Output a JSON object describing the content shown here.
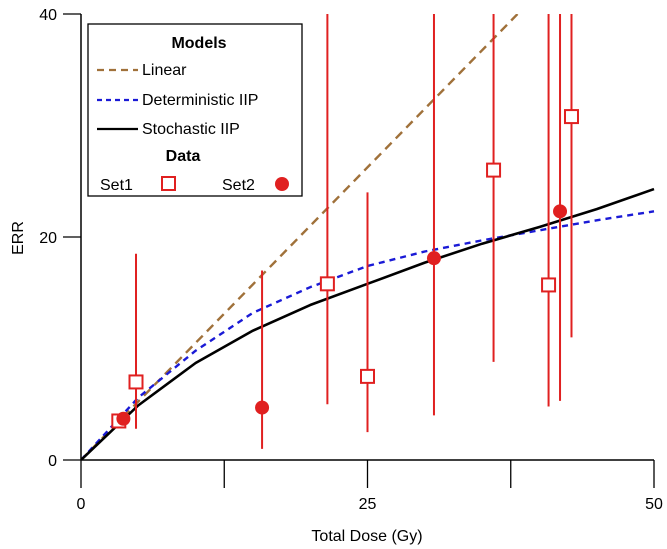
{
  "chart_data": {
    "type": "scatter",
    "title": "",
    "xlabel": "Total Dose (Gy)",
    "ylabel": "ERR",
    "xlim": [
      0,
      50
    ],
    "ylim": [
      0,
      40
    ],
    "x_ticks": [
      0,
      25,
      50
    ],
    "x_minor_ticks": [
      12.5,
      37.5
    ],
    "y_ticks": [
      0,
      20,
      40
    ],
    "grid": false,
    "legend_position": "top-left",
    "legend": {
      "models_header": "Models",
      "data_header": "Data",
      "models": [
        {
          "name": "Linear",
          "color": "#a0713a",
          "dash": "dashed"
        },
        {
          "name": "Deterministic IIP",
          "color": "#1a1ad6",
          "dash": "dotted"
        },
        {
          "name": "Stochastic IIP",
          "color": "#000000",
          "dash": "solid"
        }
      ],
      "sets": [
        {
          "name": "Set1",
          "marker": "open-square",
          "color": "#e02020"
        },
        {
          "name": "Set2",
          "marker": "filled-circle",
          "color": "#e02020"
        }
      ]
    },
    "curves": [
      {
        "name": "Linear",
        "x": [
          0,
          10,
          20,
          30,
          40
        ],
        "y": [
          0,
          10.5,
          21,
          31.5,
          42
        ]
      },
      {
        "name": "Deterministic IIP",
        "x": [
          0,
          5,
          10,
          15,
          20,
          25,
          30,
          35,
          40,
          45,
          50
        ],
        "y": [
          0,
          5.6,
          9.8,
          13.2,
          15.5,
          17.4,
          18.7,
          19.7,
          20.6,
          21.5,
          22.3
        ]
      },
      {
        "name": "Stochastic IIP",
        "x": [
          0,
          5,
          10,
          15,
          20,
          25,
          30,
          35,
          40,
          45,
          50
        ],
        "y": [
          0,
          4.9,
          8.7,
          11.6,
          13.9,
          15.8,
          17.7,
          19.4,
          20.9,
          22.5,
          24.3
        ]
      }
    ],
    "series": [
      {
        "name": "Set1",
        "points": [
          {
            "x": 3.3,
            "y": 3.5,
            "lo": 3.3,
            "hi": 3.7
          },
          {
            "x": 4.8,
            "y": 7.0,
            "lo": 2.8,
            "hi": 18.5
          },
          {
            "x": 21.5,
            "y": 15.8,
            "lo": 5.0,
            "hi": 40
          },
          {
            "x": 25.0,
            "y": 7.5,
            "lo": 2.5,
            "hi": 24.0
          },
          {
            "x": 36.0,
            "y": 26.0,
            "lo": 8.8,
            "hi": 40
          },
          {
            "x": 40.8,
            "y": 15.7,
            "lo": 4.8,
            "hi": 40
          },
          {
            "x": 42.8,
            "y": 30.8,
            "lo": 11.0,
            "hi": 40
          }
        ]
      },
      {
        "name": "Set2",
        "points": [
          {
            "x": 3.7,
            "y": 3.7,
            "lo": 3.5,
            "hi": 4.0
          },
          {
            "x": 15.8,
            "y": 4.7,
            "lo": 1.0,
            "hi": 17.0
          },
          {
            "x": 30.8,
            "y": 18.1,
            "lo": 4.0,
            "hi": 40
          },
          {
            "x": 41.8,
            "y": 22.3,
            "lo": 5.3,
            "hi": 40
          }
        ]
      }
    ]
  }
}
